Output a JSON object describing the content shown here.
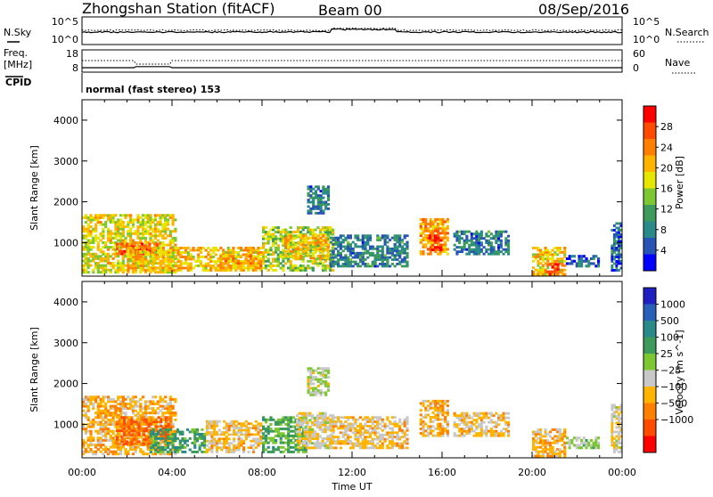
{
  "header": {
    "title": "Zhongshan Station (fitACF)",
    "beam": "Beam 00",
    "date": "08/Sep/2016"
  },
  "top_panels": {
    "nsky": {
      "left_label": "N.Sky",
      "right_label": "N.Search",
      "left_ticks": [
        "10^5",
        "10^0"
      ],
      "right_ticks": [
        "10^5",
        "10^0"
      ]
    },
    "freq": {
      "left_label_1": "Freq.",
      "left_label_2": "[MHz]",
      "right_label": "Nave",
      "left_ticks": [
        "18",
        "8"
      ],
      "right_ticks": [
        "60",
        "0"
      ]
    },
    "cpid_label": "CPID",
    "cpid_text": "normal (fast stereo) 153"
  },
  "chart_data": [
    {
      "type": "heatmap",
      "title": "",
      "quantity": "Power [dB]",
      "xlabel": "Time UT",
      "ylabel": "Slant Range [km]",
      "xlim": [
        "00:00",
        "24:00"
      ],
      "ylim": [
        180,
        4500
      ],
      "x_ticks": [
        "00:00",
        "04:00",
        "08:00",
        "12:00",
        "16:00",
        "20:00",
        "00:00"
      ],
      "y_ticks": [
        "1000",
        "2000",
        "3000",
        "4000"
      ],
      "colorbar": {
        "label": "Power [dB]",
        "ticks": [
          "4",
          "8",
          "12",
          "16",
          "20",
          "24",
          "28"
        ],
        "range": [
          0,
          32
        ],
        "colors": [
          "#0000ff",
          "#2855b5",
          "#2a8a8a",
          "#3c9a5a",
          "#7dc832",
          "#e6e600",
          "#ffb400",
          "#ff7f00",
          "#ff4a00",
          "#ff0000"
        ]
      },
      "regions": [
        {
          "t0": 0.0,
          "t1": 4.2,
          "r0": 250,
          "r1": 1700,
          "value": 18
        },
        {
          "t0": 1.5,
          "t1": 3.5,
          "r0": 700,
          "r1": 1000,
          "value": 26
        },
        {
          "t0": 2.0,
          "t1": 8.0,
          "r0": 300,
          "r1": 900,
          "value": 20
        },
        {
          "t0": 6.0,
          "t1": 8.0,
          "r0": 300,
          "r1": 700,
          "value": 22
        },
        {
          "t0": 8.0,
          "t1": 11.2,
          "r0": 300,
          "r1": 1400,
          "value": 16
        },
        {
          "t0": 9.0,
          "t1": 11.0,
          "r0": 600,
          "r1": 1200,
          "value": 20
        },
        {
          "t0": 10.0,
          "t1": 11.0,
          "r0": 1700,
          "r1": 2400,
          "value": 8
        },
        {
          "t0": 11.0,
          "t1": 14.5,
          "r0": 400,
          "r1": 1200,
          "value": 8
        },
        {
          "t0": 15.0,
          "t1": 16.3,
          "r0": 700,
          "r1": 1600,
          "value": 22
        },
        {
          "t0": 15.4,
          "t1": 16.0,
          "r0": 800,
          "r1": 1200,
          "value": 28
        },
        {
          "t0": 16.5,
          "t1": 19.0,
          "r0": 700,
          "r1": 1300,
          "value": 8
        },
        {
          "t0": 20.0,
          "t1": 21.5,
          "r0": 200,
          "r1": 900,
          "value": 20
        },
        {
          "t0": 20.5,
          "t1": 21.2,
          "r0": 200,
          "r1": 500,
          "value": 28
        },
        {
          "t0": 21.5,
          "t1": 23.0,
          "r0": 400,
          "r1": 700,
          "value": 6
        },
        {
          "t0": 23.5,
          "t1": 24.0,
          "r0": 300,
          "r1": 1500,
          "value": 6
        }
      ]
    },
    {
      "type": "heatmap",
      "title": "",
      "quantity": "Velocity [m s^-1]",
      "xlabel": "Time UT",
      "ylabel": "Slant Range [km]",
      "xlim": [
        "00:00",
        "24:00"
      ],
      "ylim": [
        180,
        4500
      ],
      "x_ticks": [
        "00:00",
        "04:00",
        "08:00",
        "12:00",
        "16:00",
        "20:00",
        "00:00"
      ],
      "y_ticks": [
        "1000",
        "2000",
        "3000",
        "4000"
      ],
      "colorbar": {
        "label": "Velocity [m s^-1]",
        "ticks": [
          "1000",
          "500",
          "100",
          "25",
          "−25",
          "−100",
          "−500",
          "−1000"
        ],
        "range": [
          -1250,
          1250
        ],
        "colors": [
          "#2020c0",
          "#2860b8",
          "#2a8a8a",
          "#3c9a5a",
          "#7dc832",
          "#c8c8c8",
          "#ffb400",
          "#ff7f00",
          "#ff4a00",
          "#ff0000"
        ]
      },
      "regions": [
        {
          "t0": 0.0,
          "t1": 4.2,
          "r0": 250,
          "r1": 1700,
          "value": -400
        },
        {
          "t0": 1.5,
          "t1": 4.0,
          "r0": 500,
          "r1": 1200,
          "value": -700
        },
        {
          "t0": 3.0,
          "t1": 5.5,
          "r0": 300,
          "r1": 900,
          "value": 400
        },
        {
          "t0": 5.5,
          "t1": 8.0,
          "r0": 300,
          "r1": 1100,
          "value": -300
        },
        {
          "t0": 8.0,
          "t1": 10.0,
          "r0": 300,
          "r1": 1200,
          "value": 300
        },
        {
          "t0": 9.5,
          "t1": 11.2,
          "r0": 400,
          "r1": 1300,
          "value": -200
        },
        {
          "t0": 10.0,
          "t1": 11.0,
          "r0": 1700,
          "r1": 2400,
          "value": -60
        },
        {
          "t0": 11.0,
          "t1": 14.5,
          "r0": 400,
          "r1": 1200,
          "value": -300
        },
        {
          "t0": 15.0,
          "t1": 16.3,
          "r0": 700,
          "r1": 1600,
          "value": -400
        },
        {
          "t0": 16.5,
          "t1": 19.0,
          "r0": 700,
          "r1": 1300,
          "value": -300
        },
        {
          "t0": 20.0,
          "t1": 21.5,
          "r0": 200,
          "r1": 900,
          "value": -400
        },
        {
          "t0": 21.5,
          "t1": 23.0,
          "r0": 400,
          "r1": 700,
          "value": 60
        },
        {
          "t0": 23.5,
          "t1": 24.0,
          "r0": 300,
          "r1": 1500,
          "value": -200
        }
      ]
    }
  ]
}
